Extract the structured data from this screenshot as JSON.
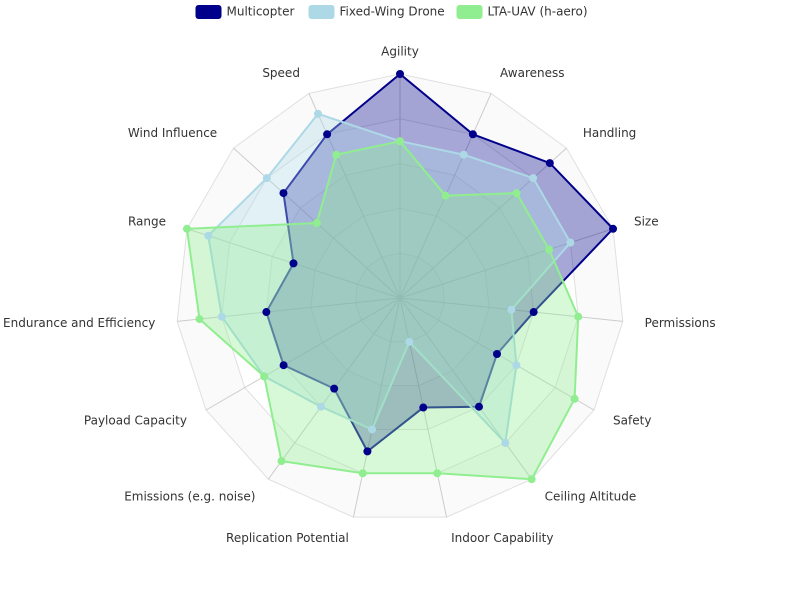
{
  "chart_data": {
    "type": "radar",
    "categories": [
      "Agility",
      "Awareness",
      "Handling",
      "Size",
      "Permissions",
      "Safety",
      "Ceiling Altitude",
      "Indoor Capability",
      "Replication Potential",
      "Emissions (e.g. noise)",
      "Payload Capacity",
      "Endurance and Efficiency",
      "Range",
      "Wind Influence",
      "Speed"
    ],
    "series": [
      {
        "name": "Multicopter",
        "color": "#00008b",
        "values": [
          5,
          4,
          4.5,
          5,
          3,
          2.5,
          3,
          2.5,
          3.5,
          2.5,
          3,
          3,
          2.5,
          3.5,
          4
        ]
      },
      {
        "name": "Fixed-Wing Drone",
        "color": "#add8e6",
        "values": [
          3.5,
          3.5,
          4,
          4,
          2.5,
          3,
          4,
          1,
          3,
          3,
          3.5,
          4,
          4.5,
          4,
          4.5
        ]
      },
      {
        "name": "LTA-UAV (h-aero)",
        "color": "#90ee90",
        "values": [
          3.5,
          2.5,
          3.5,
          3.5,
          4,
          4.5,
          5,
          4,
          4,
          4.5,
          3.5,
          4.5,
          5,
          2.5,
          3.5
        ]
      }
    ],
    "ylim": [
      0,
      5
    ],
    "yticks": [
      1,
      2,
      3,
      4,
      5
    ],
    "legend": "top"
  }
}
